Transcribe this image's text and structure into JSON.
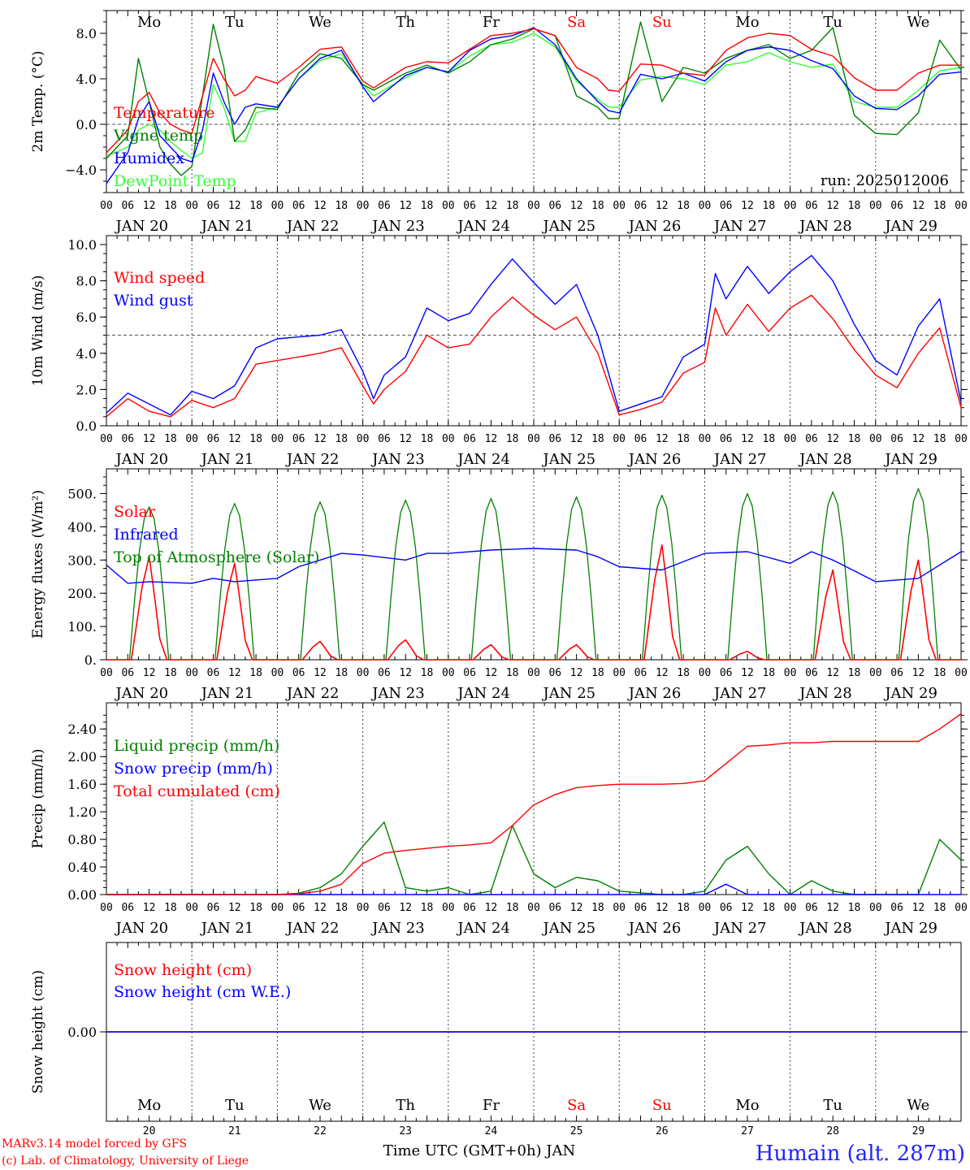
{
  "footer": {
    "model_line": "MARv3.14 model forced by GFS",
    "lab_line": "(c) Lab. of Climatology, University of Liege",
    "time_axis_label": "Time UTC (GMT+0h) JAN",
    "station": "Humain (alt. 287m)"
  },
  "days": {
    "names": [
      "Mo",
      "Tu",
      "We",
      "Th",
      "Fr",
      "Sa",
      "Su",
      "Mo",
      "Tu",
      "We"
    ],
    "weekend_flags": [
      false,
      false,
      false,
      false,
      false,
      true,
      true,
      false,
      false,
      false
    ],
    "month_labels": [
      "JAN 20",
      "JAN 21",
      "JAN 22",
      "JAN 23",
      "JAN 24",
      "JAN 25",
      "JAN 26",
      "JAN 27",
      "JAN 28",
      "JAN 29"
    ],
    "day_numbers": [
      "20",
      "21",
      "22",
      "23",
      "24",
      "25",
      "26",
      "27",
      "28",
      "29"
    ],
    "hour_ticks": [
      "00",
      "06",
      "12",
      "18"
    ],
    "final_hour": "00"
  },
  "colors": {
    "red": "#ff0000",
    "green": "#008000",
    "blue": "#0000ff",
    "lightgreen": "#33ff33",
    "station": "#2222ff"
  },
  "chart_data": [
    {
      "type": "line",
      "ylabel": "2m Temp. (°C)",
      "ylim": [
        -6,
        10
      ],
      "y_ticks": [
        -4.0,
        0.0,
        4.0,
        8.0
      ],
      "tick_labels": [
        "−4.0",
        "0.0",
        "4.0",
        "8.0"
      ],
      "ref_line": 0,
      "annotation": "run: 2025012006",
      "x_hours": [
        0,
        6,
        9,
        12,
        15,
        18,
        21,
        24,
        27,
        30,
        33,
        36,
        39,
        42,
        48,
        54,
        60,
        66,
        72,
        75,
        84,
        90,
        96,
        102,
        108,
        114,
        120,
        126,
        132,
        138,
        141,
        144,
        150,
        156,
        162,
        168,
        174,
        180,
        186,
        192,
        198,
        204,
        210,
        216,
        222,
        228,
        234,
        240
      ],
      "series": [
        {
          "name": "Temperature",
          "color": "#ff0000",
          "values": [
            -2.5,
            -0.5,
            2.0,
            2.8,
            1.0,
            0.0,
            -0.5,
            -0.8,
            2.5,
            5.8,
            4.0,
            2.5,
            3.0,
            4.2,
            3.6,
            5.0,
            6.6,
            6.8,
            3.8,
            3.2,
            5.0,
            5.5,
            5.4,
            6.6,
            7.8,
            8.0,
            8.4,
            7.8,
            5.0,
            4.0,
            3.0,
            2.9,
            5.3,
            5.2,
            4.5,
            4.3,
            6.5,
            7.6,
            8.0,
            7.8,
            6.6,
            6.0,
            4.1,
            3.0,
            3.0,
            4.5,
            5.2,
            5.2
          ]
        },
        {
          "name": "Vigne temp",
          "color": "#008000",
          "values": [
            -3.0,
            -1.0,
            5.8,
            2.0,
            -2.0,
            -3.5,
            -4.5,
            -3.7,
            2.5,
            8.8,
            5.0,
            -1.5,
            -0.5,
            1.5,
            1.3,
            4.5,
            6.2,
            5.8,
            3.5,
            3.0,
            4.5,
            5.2,
            4.5,
            5.5,
            7.0,
            7.5,
            8.4,
            7.8,
            2.5,
            1.5,
            0.5,
            0.5,
            9.0,
            2.0,
            5.0,
            4.5,
            5.8,
            6.5,
            7.0,
            5.8,
            6.5,
            8.5,
            0.8,
            -0.8,
            -0.9,
            1.0,
            7.4,
            4.8
          ]
        },
        {
          "name": "Humidex",
          "color": "#0000ff",
          "values": [
            -5.2,
            -2.5,
            0.5,
            2.0,
            -1.0,
            -2.0,
            -3.0,
            -3.3,
            -0.5,
            4.5,
            2.0,
            0.0,
            1.5,
            1.8,
            1.5,
            4.0,
            5.8,
            6.5,
            3.3,
            2.0,
            4.3,
            5.0,
            4.6,
            6.5,
            7.5,
            7.8,
            8.5,
            7.0,
            4.0,
            2.0,
            1.2,
            1.0,
            4.4,
            4.0,
            4.5,
            3.8,
            5.5,
            6.5,
            6.8,
            6.5,
            5.6,
            4.9,
            2.5,
            1.4,
            1.3,
            2.5,
            4.4,
            4.6
          ]
        },
        {
          "name": "DewPoint Temp",
          "color": "#33ff33",
          "values": [
            -2.8,
            -2.0,
            -0.5,
            0.0,
            -0.5,
            -1.5,
            -2.3,
            -3.0,
            -2.5,
            3.5,
            1.5,
            -1.5,
            -1.5,
            1.0,
            1.5,
            4.0,
            5.6,
            6.2,
            3.5,
            2.5,
            4.1,
            5.0,
            4.6,
            6.0,
            7.0,
            7.2,
            8.0,
            6.8,
            3.8,
            2.2,
            1.5,
            1.5,
            3.9,
            4.2,
            4.0,
            3.5,
            5.2,
            5.5,
            6.3,
            5.5,
            5.0,
            5.3,
            2.0,
            1.5,
            1.5,
            3.0,
            4.7,
            5.0
          ]
        }
      ]
    },
    {
      "type": "line",
      "ylabel": "10m Wind (m/s)",
      "ylim": [
        0,
        10
      ],
      "y_ticks": [
        0.0,
        2.0,
        4.0,
        6.0,
        8.0,
        10.0
      ],
      "tick_labels": [
        "0.0",
        "2.0",
        "4.0",
        "6.0",
        "8.0",
        "10.0"
      ],
      "ref_line": 5,
      "x_hours": [
        0,
        6,
        12,
        18,
        24,
        30,
        36,
        42,
        48,
        54,
        60,
        66,
        72,
        75,
        78,
        84,
        90,
        96,
        102,
        108,
        114,
        120,
        126,
        132,
        138,
        144,
        150,
        156,
        162,
        168,
        171,
        174,
        180,
        186,
        192,
        198,
        204,
        210,
        216,
        222,
        228,
        234,
        240
      ],
      "series": [
        {
          "name": "Wind speed",
          "color": "#ff0000",
          "values": [
            0.5,
            1.5,
            0.8,
            0.5,
            1.4,
            1.0,
            1.5,
            3.4,
            3.6,
            3.8,
            4.0,
            4.3,
            2.2,
            1.2,
            2.0,
            3.0,
            5.0,
            4.3,
            4.5,
            6.0,
            7.1,
            6.1,
            5.3,
            6.0,
            4.0,
            0.6,
            0.9,
            1.3,
            2.9,
            3.5,
            6.5,
            5.0,
            6.7,
            5.2,
            6.5,
            7.2,
            5.9,
            4.2,
            2.8,
            2.1,
            4.0,
            5.4,
            1.0
          ]
        },
        {
          "name": "Wind gust",
          "color": "#0000ff",
          "values": [
            0.7,
            1.8,
            1.2,
            0.6,
            1.9,
            1.5,
            2.2,
            4.3,
            4.8,
            4.9,
            5.0,
            5.3,
            3.0,
            1.5,
            2.8,
            3.8,
            6.5,
            5.8,
            6.2,
            7.8,
            9.2,
            7.9,
            6.7,
            7.8,
            5.0,
            0.8,
            1.2,
            1.6,
            3.8,
            4.5,
            8.4,
            7.0,
            8.8,
            7.3,
            8.5,
            9.4,
            8.0,
            5.6,
            3.6,
            2.8,
            5.5,
            7.0,
            1.3
          ]
        }
      ]
    },
    {
      "type": "line",
      "ylabel": "Energy fluxes (W/m²)",
      "ylim": [
        0,
        550
      ],
      "y_ticks": [
        0,
        100,
        200,
        300,
        400,
        500
      ],
      "tick_labels": [
        "0.",
        "100.",
        "200.",
        "300.",
        "400.",
        "500."
      ],
      "solar_peaks_wm2": [
        310,
        290,
        55,
        60,
        45,
        45,
        345,
        25,
        270,
        300
      ],
      "toa_peaks_wm2": [
        460,
        470,
        475,
        480,
        485,
        490,
        495,
        500,
        505,
        515
      ],
      "infrared_x_hours": [
        0,
        6,
        12,
        24,
        30,
        36,
        48,
        54,
        60,
        66,
        72,
        84,
        90,
        96,
        108,
        120,
        132,
        138,
        144,
        150,
        156,
        168,
        180,
        192,
        198,
        204,
        216,
        228,
        240
      ],
      "infrared_values": [
        285,
        230,
        235,
        230,
        245,
        235,
        245,
        280,
        300,
        320,
        315,
        300,
        320,
        320,
        330,
        335,
        330,
        310,
        280,
        275,
        270,
        320,
        325,
        290,
        325,
        300,
        235,
        245,
        325
      ],
      "series": [
        {
          "name": "Solar",
          "color": "#ff0000"
        },
        {
          "name": "Infrared",
          "color": "#0000ff"
        },
        {
          "name": "Top of Atmosphere (Solar)",
          "color": "#008000"
        }
      ]
    },
    {
      "type": "line",
      "ylabel": "Precip (mm/h)",
      "ylim": [
        0,
        2.65
      ],
      "y_ticks": [
        0.0,
        0.4,
        0.8,
        1.2,
        1.6,
        2.0,
        2.4
      ],
      "tick_labels": [
        "0.00",
        "0.40",
        "0.80",
        "1.20",
        "1.60",
        "2.00",
        "2.40"
      ],
      "x_hours": [
        0,
        48,
        54,
        60,
        66,
        72,
        78,
        84,
        90,
        96,
        102,
        108,
        114,
        120,
        126,
        132,
        138,
        144,
        156,
        162,
        168,
        174,
        180,
        186,
        192,
        198,
        204,
        210,
        216,
        228,
        234,
        240
      ],
      "series": [
        {
          "name": "Liquid precip (mm/h)",
          "color": "#008000",
          "values": [
            0,
            0,
            0.02,
            0.1,
            0.3,
            0.7,
            1.05,
            0.1,
            0.05,
            0.1,
            0.0,
            0.05,
            1.0,
            0.3,
            0.1,
            0.25,
            0.2,
            0.05,
            0,
            0,
            0.05,
            0.5,
            0.7,
            0.3,
            0,
            0.2,
            0.05,
            0,
            0,
            0,
            0.8,
            0.5
          ]
        },
        {
          "name": "Snow precip (mm/h)",
          "color": "#0000ff",
          "values": [
            0,
            0,
            0,
            0,
            0,
            0,
            0,
            0,
            0,
            0,
            0,
            0,
            0,
            0,
            0,
            0,
            0,
            0,
            0,
            0,
            0,
            0.15,
            0,
            0,
            0,
            0,
            0,
            0,
            0,
            0,
            0,
            0
          ]
        },
        {
          "name": "Total cumulated (cm)",
          "color": "#ff0000",
          "values": [
            0,
            0,
            0.01,
            0.05,
            0.15,
            0.45,
            0.6,
            0.64,
            0.67,
            0.7,
            0.72,
            0.75,
            1.0,
            1.3,
            1.45,
            1.55,
            1.58,
            1.6,
            1.6,
            1.61,
            1.65,
            1.9,
            2.15,
            2.17,
            2.2,
            2.2,
            2.22,
            2.22,
            2.22,
            2.22,
            2.4,
            2.62
          ]
        }
      ]
    },
    {
      "type": "line",
      "ylabel": "Snow height (cm)",
      "ylim": [
        -1,
        1
      ],
      "y_ticks": [
        0.0
      ],
      "tick_labels": [
        "0.00"
      ],
      "x_hours": [
        0,
        240
      ],
      "series": [
        {
          "name": "Snow height (cm)",
          "color": "#ff0000",
          "values": [
            0,
            0
          ]
        },
        {
          "name": "Snow height (cm W.E.)",
          "color": "#0000ff",
          "values": [
            0,
            0
          ]
        }
      ]
    }
  ]
}
